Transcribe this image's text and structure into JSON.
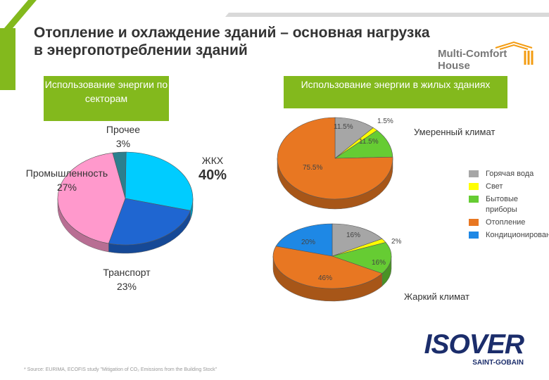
{
  "slide": {
    "title_line1": "Отопление и охлаждение зданий – основная нагрузка",
    "title_line2": "в энергопотреблении зданий",
    "brand_line1": "Multi-Comfort",
    "brand_line2": "House",
    "logo_text": "ISOVER",
    "logo_sub": "SAINT-GOBAIN",
    "source": "* Source: EURIMA, ECOFIS study \"Mitigation of CO₂ Emissions from the Building Stock\""
  },
  "colors": {
    "green": "#83b91d",
    "stripe_gray": "#d9d9d9",
    "hot_water": "#a6a6a6",
    "light": "#ffff00",
    "appliances": "#66cc33",
    "heating": "#e87722",
    "cooling": "#1e88e5",
    "sector_other": "#2b7f8e",
    "sector_industry": "#00ccff",
    "sector_transport": "#1f66d1",
    "sector_housing": "#ff99cc"
  },
  "chart_data": [
    {
      "type": "pie",
      "title": "Использование энергии по секторам",
      "categories": [
        "Прочее",
        "Промышленность",
        "Транспорт",
        "ЖКХ"
      ],
      "values": [
        3,
        27,
        23,
        40
      ],
      "value_labels": [
        "3%",
        "27%",
        "23%",
        "40%"
      ],
      "colors": [
        "#2b7f8e",
        "#00ccff",
        "#1f66d1",
        "#ff99cc"
      ],
      "annotation": ""
    },
    {
      "type": "pie",
      "title": "Использование энергии в жилых зданиях",
      "annotation": "Умеренный климат",
      "categories": [
        "Горячая вода",
        "Свет",
        "Бытовые приборы",
        "Отопление"
      ],
      "values": [
        11.5,
        1.5,
        11.5,
        75.5
      ],
      "value_labels": [
        "11.5%",
        "1.5%",
        "11.5%",
        "75.5%"
      ],
      "colors": [
        "#a6a6a6",
        "#ffff00",
        "#66cc33",
        "#e87722"
      ]
    },
    {
      "type": "pie",
      "title": "",
      "annotation": "Жаркий климат",
      "categories": [
        "Горячая вода",
        "Свет",
        "Бытовые приборы",
        "Отопление",
        "Кондиционирование"
      ],
      "values": [
        16,
        2,
        16,
        46,
        20
      ],
      "value_labels": [
        "16%",
        "2%",
        "16%",
        "46%",
        "20%"
      ],
      "colors": [
        "#a6a6a6",
        "#ffff00",
        "#66cc33",
        "#e87722",
        "#1e88e5"
      ]
    }
  ],
  "legend": [
    {
      "label": "Горячая вода",
      "color": "#a6a6a6"
    },
    {
      "label": "Свет",
      "color": "#ffff00"
    },
    {
      "label": "Бытовые приборы",
      "color": "#66cc33"
    },
    {
      "label": "Отопление",
      "color": "#e87722"
    },
    {
      "label": "Кондиционирование",
      "color": "#1e88e5"
    }
  ]
}
